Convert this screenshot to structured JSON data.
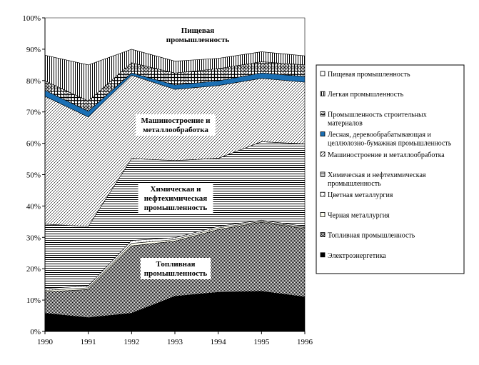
{
  "chart_data": {
    "type": "area",
    "stacked": true,
    "x": [
      "1990",
      "1991",
      "1992",
      "1993",
      "1994",
      "1995",
      "1996"
    ],
    "ylim": [
      0,
      100
    ],
    "yticks": [
      "0%",
      "10%",
      "20%",
      "30%",
      "40%",
      "50%",
      "60%",
      "70%",
      "80%",
      "90%",
      "100%"
    ],
    "grid": false,
    "legend_position": "right",
    "series": [
      {
        "name": "Электроэнергетика",
        "pattern": "solid-black",
        "values": [
          5.8,
          4.4,
          5.8,
          11.2,
          12.5,
          12.8,
          11.0
        ]
      },
      {
        "name": "Топливная промышленность",
        "pattern": "diagonal-cross",
        "values": [
          6.8,
          9.0,
          21.5,
          17.6,
          20.0,
          22.0,
          21.8
        ]
      },
      {
        "name": "Черная металлургия",
        "pattern": "light-fill",
        "values": [
          0.5,
          0.5,
          0.8,
          0.5,
          0.5,
          0.3,
          0.3
        ]
      },
      {
        "name": "Цветная металлургия",
        "pattern": "light-dots",
        "values": [
          0.6,
          0.6,
          0.9,
          0.6,
          0.5,
          0.4,
          0.4
        ]
      },
      {
        "name": "Химическая и нефтехимическая промышленность",
        "pattern": "horizontal-lines",
        "values": [
          20.5,
          19.0,
          26.1,
          24.6,
          21.7,
          25.0,
          26.3
        ]
      },
      {
        "name": "Машиностроение и металлообработка",
        "pattern": "diagonal-lines",
        "values": [
          40.8,
          34.9,
          26.6,
          22.7,
          23.2,
          20.2,
          19.7
        ]
      },
      {
        "name": "Лесная, деревообрабатывающая и целлюлозно-бумажная промышленность",
        "pattern": "solid-blue",
        "color": "#1a6fb4",
        "values": [
          1.9,
          1.8,
          0.7,
          1.4,
          1.5,
          1.7,
          1.8
        ]
      },
      {
        "name": "Промышленность строительных материалов",
        "pattern": "grid",
        "values": [
          3.0,
          3.3,
          3.3,
          3.8,
          3.9,
          3.6,
          3.7
        ]
      },
      {
        "name": "Легкая промышленность",
        "pattern": "vertical-lines",
        "values": [
          8.2,
          11.5,
          4.3,
          3.8,
          3.3,
          3.2,
          2.9
        ]
      },
      {
        "name": "Пищевая промышленность",
        "pattern": "white",
        "values": [
          11.9,
          15.0,
          10.0,
          13.8,
          12.9,
          10.8,
          12.1
        ]
      }
    ],
    "annotations": [
      {
        "text": "Пищевая промышленность",
        "lines": [
          "Пищевая",
          "промышленность"
        ]
      },
      {
        "text": "Машиностроение и металлообработка",
        "lines": [
          "Машиностроение и",
          "металлообработка"
        ]
      },
      {
        "text": "Химическая и нефтехимическая промышленность",
        "lines": [
          "Химическая и",
          "нефтехимическая",
          "промышленность"
        ]
      },
      {
        "text": "Топливная промышленность",
        "lines": [
          "Топливная",
          "промышленность"
        ]
      }
    ],
    "legend_items": [
      {
        "series_index": 9,
        "lines": [
          "Пищевая промышленность"
        ]
      },
      {
        "series_index": 8,
        "lines": [
          "Легкая промышленность"
        ]
      },
      {
        "series_index": 7,
        "lines": [
          "Промышленность строительных",
          "материалов"
        ]
      },
      {
        "series_index": 6,
        "lines": [
          "Лесная, деревообрабатывающая и",
          "целлюлозно-бумажная промышленность"
        ]
      },
      {
        "series_index": 5,
        "lines": [
          "Машиностроение и металлообработка"
        ]
      },
      {
        "series_index": 4,
        "lines": [
          "Химическая и нефтехимическая",
          "промышленность"
        ]
      },
      {
        "series_index": 3,
        "lines": [
          "Цветная металлургия"
        ]
      },
      {
        "series_index": 2,
        "lines": [
          "Черная металлургия"
        ]
      },
      {
        "series_index": 1,
        "lines": [
          "Топливная промышленность"
        ]
      },
      {
        "series_index": 0,
        "lines": [
          "Электроэнергетика"
        ]
      }
    ]
  }
}
